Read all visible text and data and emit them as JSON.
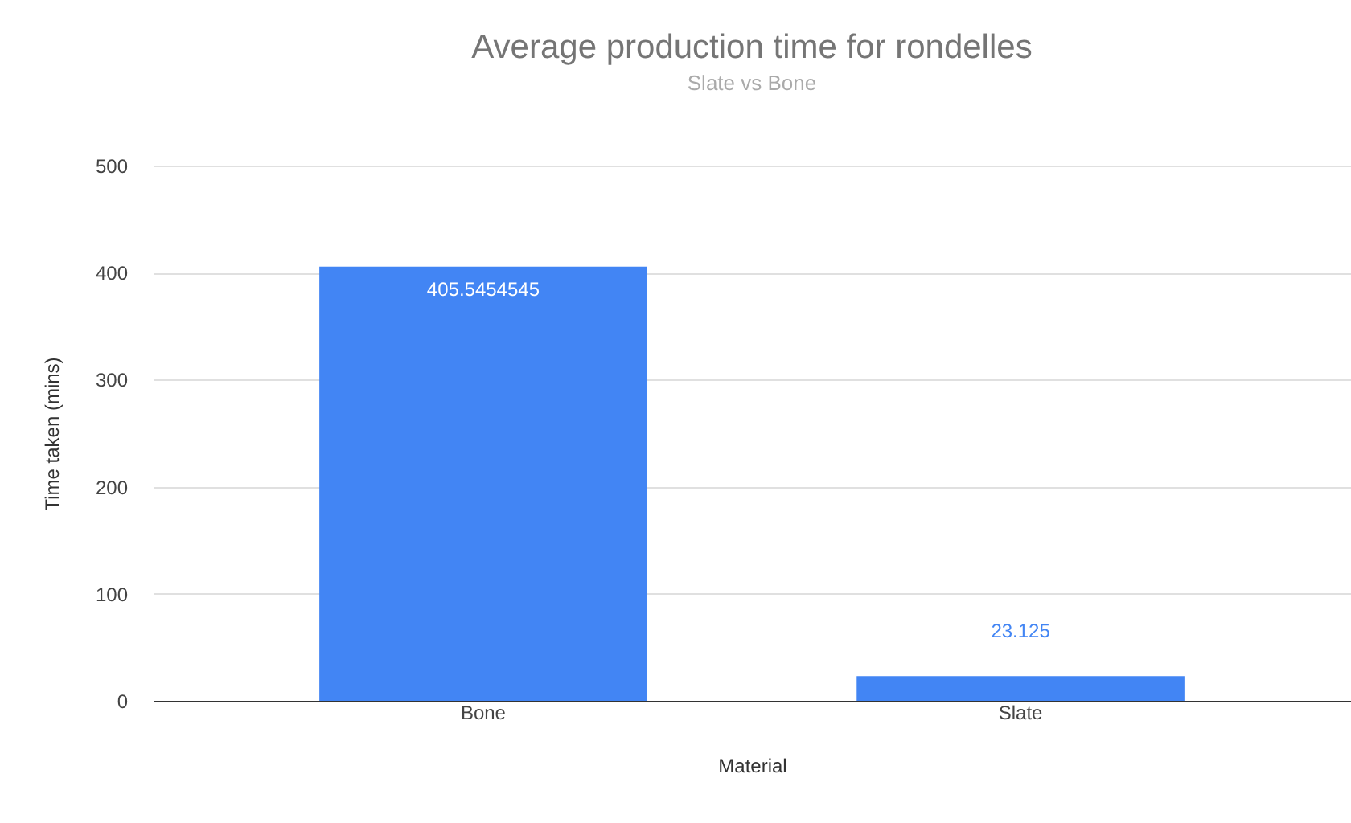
{
  "chart_data": {
    "type": "bar",
    "title": "Average production time for rondelles",
    "subtitle": "Slate vs Bone",
    "xlabel": "Material",
    "ylabel": "Time taken (mins)",
    "categories": [
      "Bone",
      "Slate"
    ],
    "values": [
      405.5454545,
      23.125
    ],
    "color": "#4285f4",
    "ylim": [
      0,
      500
    ],
    "yticks": [
      0,
      100,
      200,
      300,
      400,
      500
    ],
    "grid": "y",
    "data_labels": true
  }
}
